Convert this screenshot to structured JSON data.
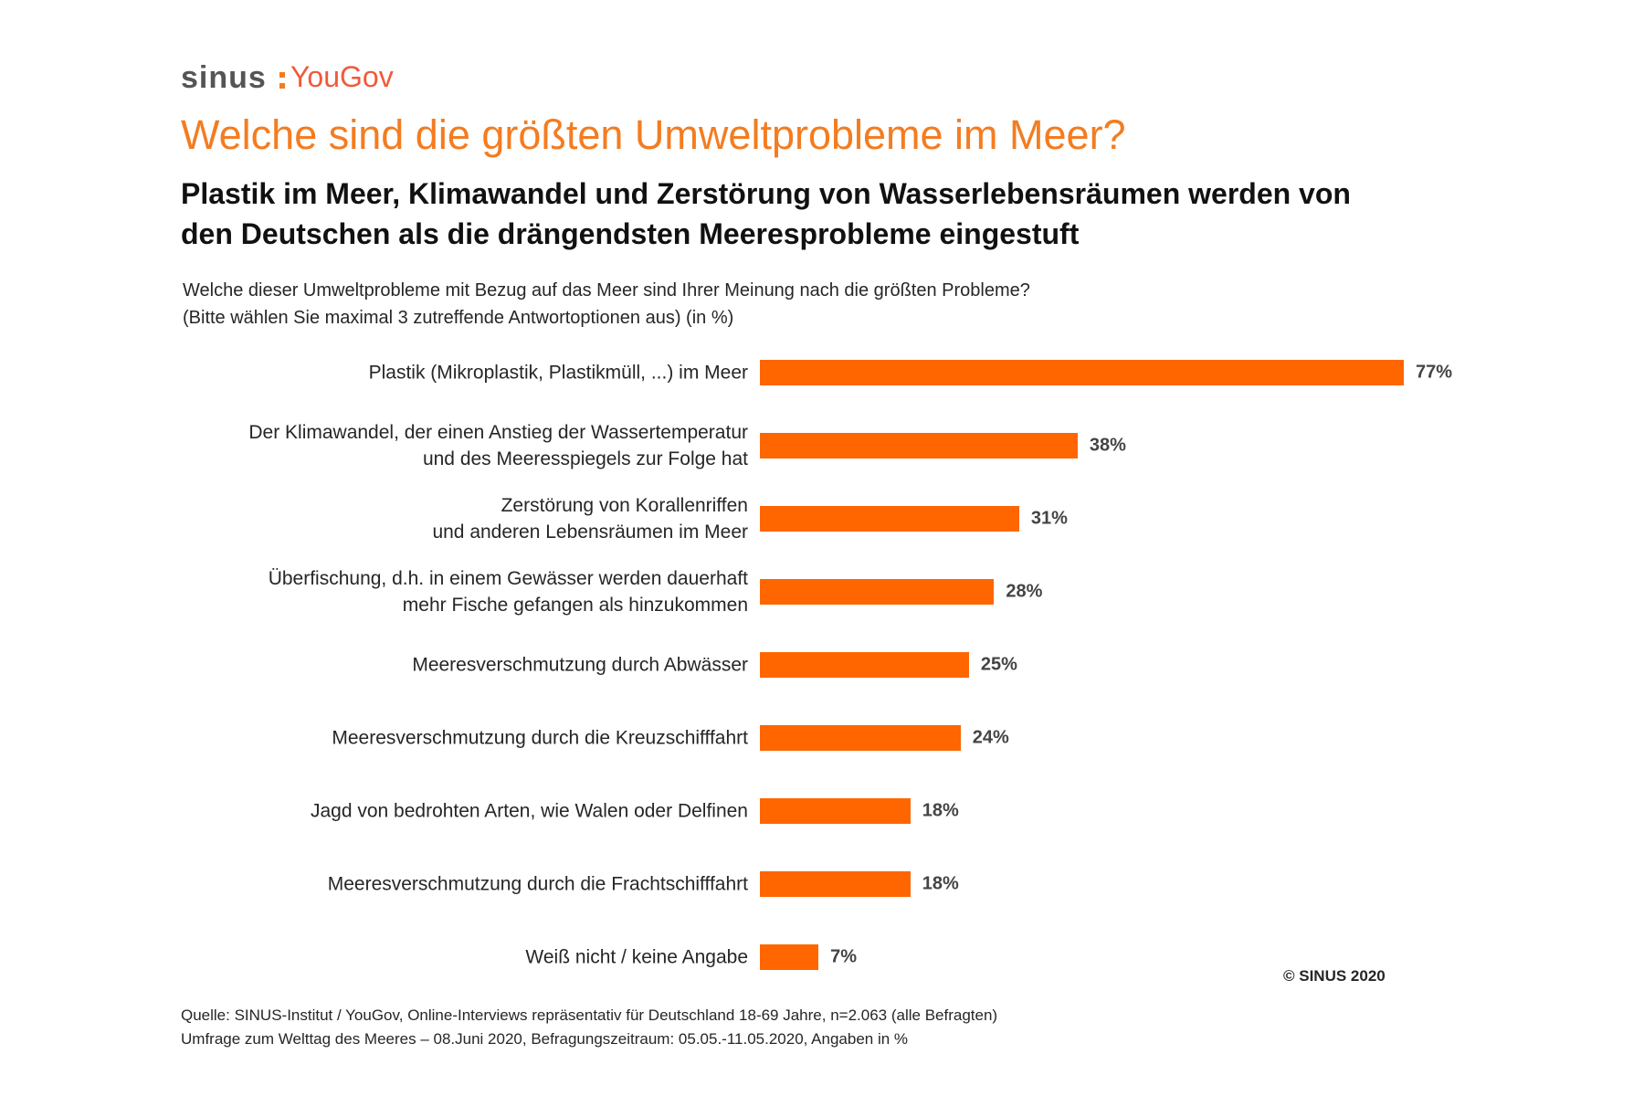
{
  "logo": {
    "sinus": "sinus",
    "yougov": "YouGov"
  },
  "chart_data": {
    "type": "bar",
    "orientation": "horizontal",
    "title": "Welche sind die größten Umweltprobleme im Meer?",
    "subtitle": "Plastik im Meer, Klimawandel und Zerstörung von Wasserlebensräumen werden von\nden Deutschen als die drängendsten Meeresprobleme eingestuft",
    "question": "Welche dieser Umweltprobleme mit Bezug auf das Meer sind Ihrer Meinung nach die größten Probleme?\n(Bitte wählen Sie maximal 3 zutreffende Antwortoptionen aus) (in %)",
    "categories": [
      "Plastik (Mikroplastik, Plastikmüll, ...) im Meer",
      "Der Klimawandel, der einen Anstieg der Wassertemperatur\nund des Meeresspiegels zur Folge hat",
      "Zerstörung von Korallenriffen\nund anderen Lebensräumen im Meer",
      "Überfischung, d.h. in einem Gewässer werden dauerhaft\nmehr Fische gefangen als hinzukommen",
      "Meeresverschmutzung durch Abwässer",
      "Meeresverschmutzung durch die Kreuzschifffahrt",
      "Jagd von bedrohten Arten, wie Walen oder Delfinen",
      "Meeresverschmutzung durch die Frachtschifffahrt",
      "Weiß nicht / keine Angabe"
    ],
    "values": [
      77,
      38,
      31,
      28,
      25,
      24,
      18,
      18,
      7
    ],
    "value_labels": [
      "77%",
      "38%",
      "31%",
      "28%",
      "25%",
      "24%",
      "18%",
      "18%",
      "7%"
    ],
    "color": "#ff6600",
    "copyright": "© SINUS 2020",
    "source": [
      "Quelle: SINUS-Institut / YouGov, Online-Interviews repräsentativ für Deutschland 18-69 Jahre, n=2.063 (alle Befragten)",
      "Umfrage zum Welttag des Meeres – 08.Juni 2020, Befragungszeitraum: 05.05.-11.05.2020, Angaben in %"
    ]
  }
}
